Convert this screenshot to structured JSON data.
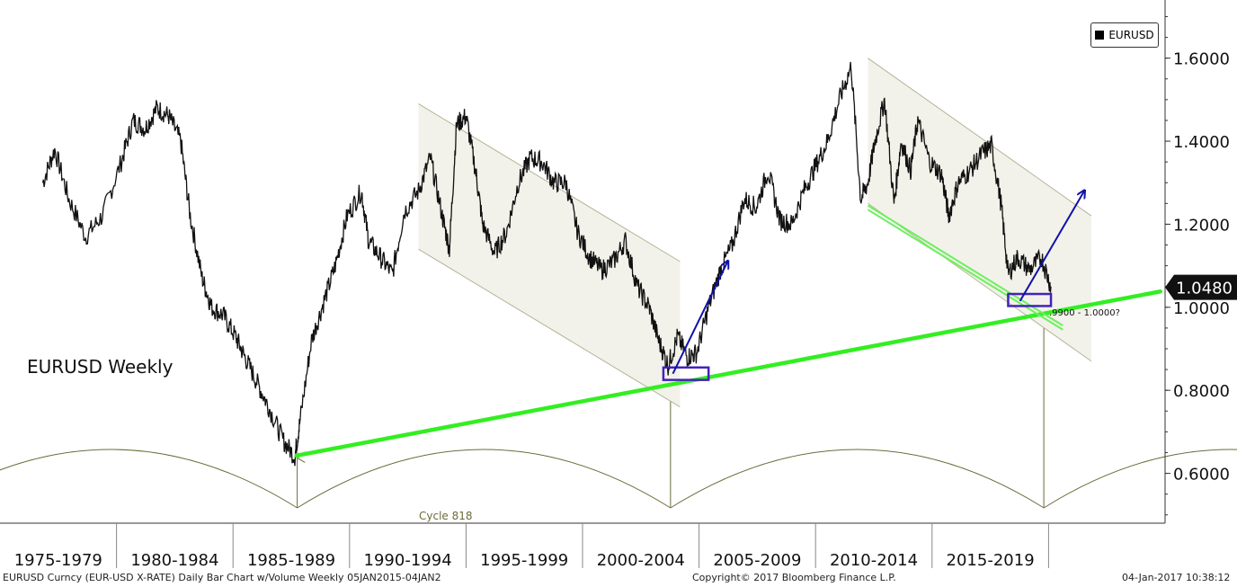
{
  "chart_data": {
    "type": "line",
    "title": "EURUSD Weekly",
    "series": [
      {
        "name": "EURUSD",
        "x": [
          1974.5,
          1975.0,
          1975.6,
          1976.3,
          1977.0,
          1977.8,
          1978.3,
          1978.8,
          1979.3,
          1979.8,
          1980.3,
          1980.7,
          1981.2,
          1981.6,
          1982.1,
          1982.6,
          1983.0,
          1983.5,
          1984.0,
          1984.6,
          1985.1,
          1985.3,
          1985.8,
          1986.3,
          1986.8,
          1987.3,
          1987.9,
          1988.2,
          1988.7,
          1989.2,
          1989.7,
          1990.3,
          1990.8,
          1991.3,
          1991.6,
          1991.9,
          1992.3,
          1992.7,
          1993.0,
          1993.5,
          1994.0,
          1994.5,
          1995.0,
          1995.5,
          1996.0,
          1996.5,
          1997.0,
          1997.5,
          1998.0,
          1998.5,
          1999.0,
          1999.5,
          2000.0,
          2000.4,
          2000.8,
          2001.2,
          2001.6,
          2002.0,
          2002.5,
          2003.0,
          2003.5,
          2004.0,
          2004.5,
          2005.0,
          2005.5,
          2006.0,
          2006.5,
          2007.0,
          2007.5,
          2008.0,
          2008.5,
          2008.9,
          2009.2,
          2009.5,
          2009.9,
          2010.3,
          2010.6,
          2011.0,
          2011.3,
          2011.8,
          2012.3,
          2012.6,
          2013.0,
          2013.5,
          2014.0,
          2014.4,
          2014.8,
          2015.1,
          2015.5,
          2016.0,
          2016.5,
          2016.9
        ],
        "values": [
          1.3,
          1.38,
          1.26,
          1.17,
          1.22,
          1.35,
          1.45,
          1.43,
          1.48,
          1.46,
          1.4,
          1.22,
          1.07,
          1.0,
          0.98,
          0.93,
          0.88,
          0.82,
          0.76,
          0.68,
          0.64,
          0.72,
          0.92,
          1.01,
          1.1,
          1.22,
          1.28,
          1.16,
          1.12,
          1.08,
          1.23,
          1.28,
          1.36,
          1.22,
          1.14,
          1.44,
          1.46,
          1.33,
          1.2,
          1.13,
          1.18,
          1.3,
          1.36,
          1.35,
          1.3,
          1.3,
          1.18,
          1.12,
          1.09,
          1.11,
          1.16,
          1.05,
          1.0,
          0.92,
          0.86,
          0.93,
          0.88,
          0.89,
          1.0,
          1.09,
          1.15,
          1.26,
          1.24,
          1.33,
          1.21,
          1.2,
          1.28,
          1.34,
          1.4,
          1.5,
          1.58,
          1.26,
          1.3,
          1.4,
          1.5,
          1.25,
          1.4,
          1.33,
          1.45,
          1.35,
          1.32,
          1.22,
          1.3,
          1.33,
          1.37,
          1.39,
          1.25,
          1.08,
          1.12,
          1.09,
          1.12,
          1.05
        ]
      }
    ],
    "x_tick_labels": [
      "1975-1979",
      "1980-1984",
      "1985-1989",
      "1990-1994",
      "1995-1999",
      "2000-2004",
      "2005-2009",
      "2010-2014",
      "2015-2019"
    ],
    "y_tick_labels": [
      "1.6000",
      "1.4000",
      "1.2000",
      "1.0000",
      "0.8000",
      "0.6000"
    ],
    "y_ticks": [
      1.6,
      1.4,
      1.2,
      1.0,
      0.8,
      0.6
    ],
    "ylim": [
      0.48,
      1.74
    ],
    "xlim": [
      1972.7,
      2021.7
    ],
    "y_axis_side": "right",
    "grid": false,
    "legend": {
      "label": "EURUSD",
      "position": "top-right"
    },
    "last_price": {
      "label": "1.0480",
      "value": 1.048
    },
    "annotations": {
      "chart_label": "EURUSD Weekly",
      "target_text": ".9900 - 1.0000?",
      "cycle_text": "Cycle 818"
    },
    "support_line": {
      "x": [
        1985.2,
        2021.5
      ],
      "y": [
        0.643,
        1.038
      ]
    },
    "channels": [
      {
        "x": [
          1990.3,
          2001.3
        ],
        "top": [
          1.49,
          1.11
        ],
        "bottom": [
          1.14,
          0.76
        ]
      },
      {
        "x": [
          2009.2,
          2018.6
        ],
        "top": [
          1.6,
          1.22
        ],
        "bottom": [
          1.25,
          0.87
        ]
      }
    ],
    "channel_lower_trendlines": {
      "x": [
        2009.2,
        2017.4
      ],
      "y1": [
        1.245,
        0.956
      ],
      "y2": [
        1.235,
        0.946
      ]
    },
    "highlight_boxes": [
      {
        "x": [
          2000.6,
          2002.5
        ],
        "y": [
          0.825,
          0.855
        ]
      },
      {
        "x": [
          2015.1,
          2016.9
        ],
        "y": [
          1.003,
          1.032
        ]
      }
    ],
    "projection_arrows": [
      {
        "x": [
          2001.0,
          2003.3
        ],
        "y": [
          0.84,
          1.11
        ]
      },
      {
        "x": [
          2015.6,
          2018.3
        ],
        "y": [
          1.015,
          1.28
        ]
      }
    ],
    "cycle_lows_x": [
      1985.2,
      2000.9,
      2016.6
    ],
    "cycle_arrow_tips": [
      0.643,
      0.825,
      1.0
    ]
  },
  "footer": {
    "left": "EURUSD Curncy (EUR-USD X-RATE) Daily Bar Chart w/Volume  Weekly 05JAN2015-04JAN2",
    "center": "Copyright© 2017 Bloomberg Finance L.P.",
    "right": "04-Jan-2017 10:38:12"
  },
  "colors": {
    "price": "#111111",
    "support": "#33ee22",
    "channel_fill": "#f2f2ea",
    "channel_edge": "#b4b497",
    "cycle": "#6b6b3a",
    "box": "#4422bb",
    "arrow": "#1111aa",
    "axis": "#333333"
  }
}
